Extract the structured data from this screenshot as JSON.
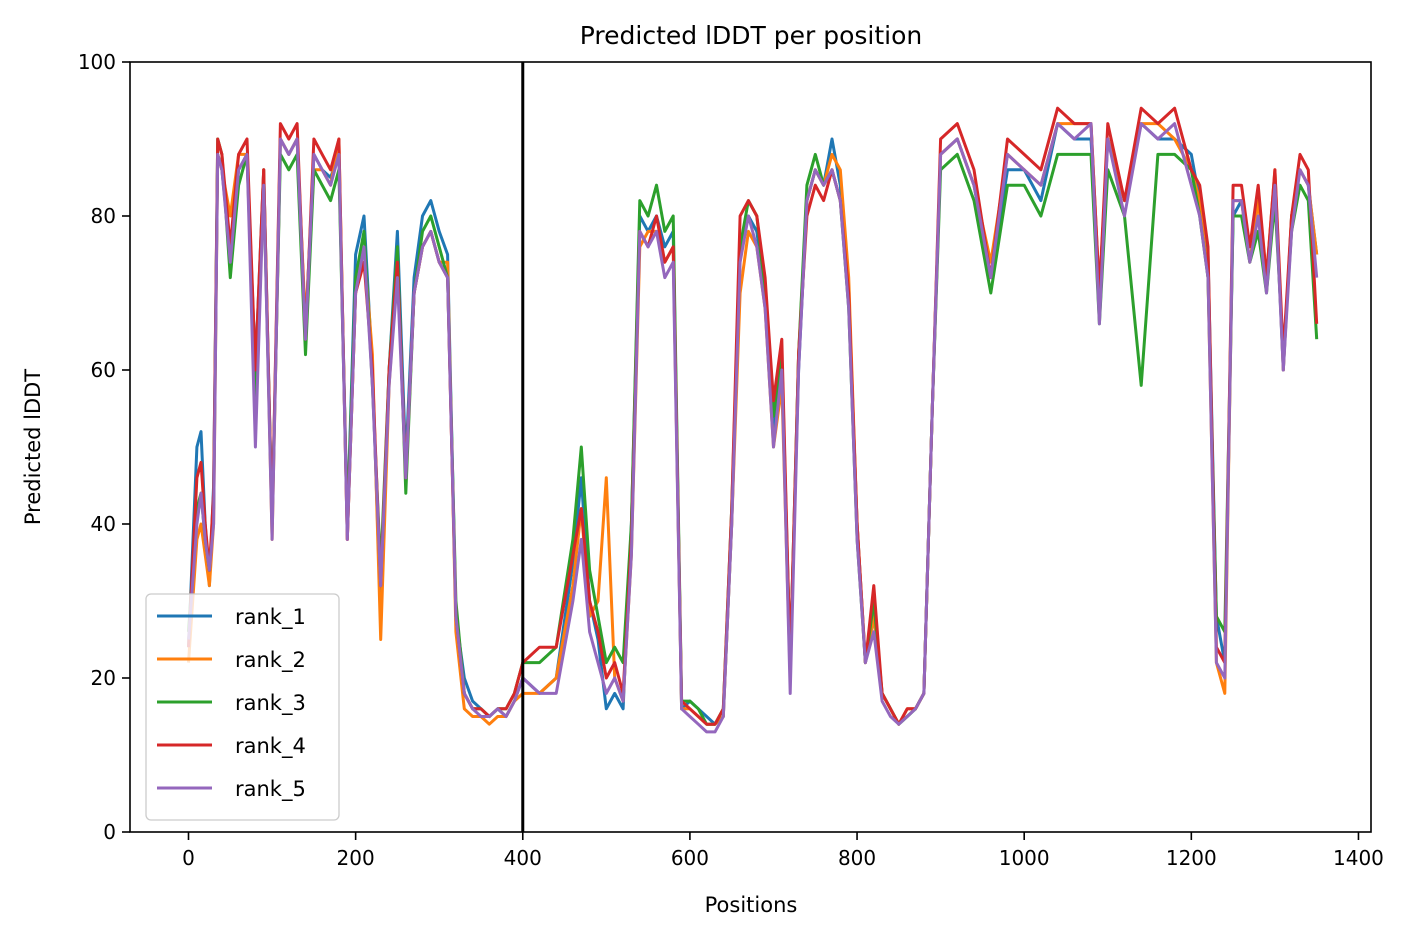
{
  "chart_data": {
    "type": "line",
    "title": "Predicted lDDT per position",
    "xlabel": "Positions",
    "ylabel": "Predicted lDDT",
    "xlim": [
      -70,
      1415
    ],
    "ylim": [
      0,
      100
    ],
    "xticks": [
      0,
      200,
      400,
      600,
      800,
      1000,
      1200,
      1400
    ],
    "yticks": [
      0,
      20,
      40,
      60,
      80,
      100
    ],
    "grid": false,
    "legend_position": "lower-left",
    "vline": {
      "x": 400,
      "color": "#000000"
    },
    "series": [
      {
        "name": "rank_1",
        "color": "#1f77b4",
        "x": [
          0,
          10,
          15,
          20,
          25,
          30,
          35,
          40,
          50,
          60,
          70,
          80,
          90,
          100,
          110,
          120,
          130,
          140,
          150,
          160,
          170,
          180,
          190,
          200,
          210,
          220,
          230,
          240,
          250,
          260,
          270,
          280,
          290,
          300,
          310,
          320,
          330,
          340,
          350,
          360,
          370,
          380,
          390,
          400,
          420,
          440,
          460,
          470,
          480,
          490,
          500,
          510,
          520,
          530,
          540,
          550,
          560,
          570,
          580,
          590,
          600,
          610,
          620,
          630,
          640,
          650,
          660,
          670,
          680,
          690,
          700,
          710,
          720,
          730,
          740,
          750,
          760,
          770,
          780,
          790,
          800,
          810,
          820,
          830,
          840,
          850,
          860,
          870,
          880,
          890,
          900,
          920,
          940,
          960,
          980,
          1000,
          1020,
          1040,
          1060,
          1080,
          1090,
          1100,
          1120,
          1140,
          1160,
          1180,
          1200,
          1210,
          1220,
          1230,
          1240,
          1250,
          1260,
          1270,
          1280,
          1290,
          1300,
          1310,
          1320,
          1330,
          1340,
          1350
        ],
        "values": [
          24,
          50,
          52,
          40,
          32,
          45,
          88,
          86,
          75,
          86,
          88,
          60,
          86,
          40,
          90,
          88,
          90,
          65,
          88,
          86,
          85,
          88,
          40,
          75,
          80,
          60,
          28,
          60,
          78,
          48,
          72,
          80,
          82,
          78,
          75,
          28,
          20,
          17,
          16,
          15,
          16,
          15,
          17,
          20,
          18,
          20,
          35,
          46,
          30,
          25,
          16,
          18,
          16,
          40,
          80,
          78,
          80,
          76,
          78,
          16,
          17,
          16,
          15,
          14,
          15,
          40,
          75,
          80,
          78,
          70,
          52,
          60,
          22,
          60,
          82,
          86,
          84,
          90,
          84,
          70,
          40,
          22,
          28,
          18,
          16,
          14,
          15,
          16,
          18,
          55,
          88,
          90,
          84,
          72,
          86,
          86,
          82,
          92,
          90,
          90,
          70,
          90,
          82,
          92,
          90,
          90,
          88,
          82,
          75,
          28,
          22,
          80,
          82,
          76,
          80,
          72,
          85,
          60,
          80,
          86,
          84,
          75
        ]
      },
      {
        "name": "rank_2",
        "color": "#ff7f0e",
        "x": [
          0,
          10,
          15,
          20,
          25,
          30,
          35,
          40,
          50,
          60,
          70,
          80,
          90,
          100,
          110,
          120,
          130,
          140,
          150,
          160,
          170,
          180,
          190,
          200,
          210,
          220,
          230,
          240,
          250,
          260,
          270,
          280,
          290,
          300,
          310,
          320,
          330,
          340,
          350,
          360,
          370,
          380,
          390,
          400,
          420,
          440,
          460,
          470,
          480,
          490,
          500,
          510,
          520,
          530,
          540,
          550,
          560,
          570,
          580,
          590,
          600,
          610,
          620,
          630,
          640,
          650,
          660,
          670,
          680,
          690,
          700,
          710,
          720,
          730,
          740,
          750,
          760,
          770,
          780,
          790,
          800,
          810,
          820,
          830,
          840,
          850,
          860,
          870,
          880,
          890,
          900,
          920,
          940,
          960,
          980,
          1000,
          1020,
          1040,
          1060,
          1080,
          1090,
          1100,
          1120,
          1140,
          1160,
          1180,
          1200,
          1210,
          1220,
          1230,
          1240,
          1250,
          1260,
          1270,
          1280,
          1290,
          1300,
          1310,
          1320,
          1330,
          1340,
          1350
        ],
        "values": [
          22,
          38,
          40,
          36,
          32,
          40,
          88,
          86,
          80,
          88,
          88,
          58,
          86,
          38,
          90,
          88,
          90,
          66,
          86,
          86,
          84,
          90,
          38,
          70,
          76,
          62,
          25,
          58,
          74,
          46,
          70,
          76,
          78,
          74,
          74,
          26,
          16,
          15,
          15,
          14,
          15,
          15,
          17,
          18,
          18,
          20,
          32,
          42,
          28,
          30,
          46,
          20,
          17,
          36,
          76,
          78,
          78,
          74,
          76,
          16,
          16,
          15,
          14,
          14,
          15,
          40,
          70,
          78,
          76,
          68,
          50,
          58,
          20,
          62,
          82,
          86,
          84,
          88,
          86,
          72,
          40,
          22,
          28,
          18,
          16,
          14,
          16,
          16,
          18,
          55,
          88,
          90,
          84,
          74,
          88,
          86,
          84,
          92,
          92,
          92,
          70,
          90,
          82,
          92,
          92,
          90,
          86,
          82,
          72,
          22,
          18,
          82,
          82,
          74,
          82,
          72,
          86,
          60,
          80,
          86,
          84,
          75
        ]
      },
      {
        "name": "rank_3",
        "color": "#2ca02c",
        "x": [
          0,
          10,
          15,
          20,
          25,
          30,
          35,
          40,
          50,
          60,
          70,
          80,
          90,
          100,
          110,
          120,
          130,
          140,
          150,
          160,
          170,
          180,
          190,
          200,
          210,
          220,
          230,
          240,
          250,
          260,
          270,
          280,
          290,
          300,
          310,
          320,
          330,
          340,
          350,
          360,
          370,
          380,
          390,
          400,
          420,
          440,
          460,
          470,
          480,
          490,
          500,
          510,
          520,
          530,
          540,
          550,
          560,
          570,
          580,
          590,
          600,
          610,
          620,
          630,
          640,
          650,
          660,
          670,
          680,
          690,
          700,
          710,
          720,
          730,
          740,
          750,
          760,
          770,
          780,
          790,
          800,
          810,
          820,
          830,
          840,
          850,
          860,
          870,
          880,
          890,
          900,
          920,
          940,
          960,
          980,
          1000,
          1020,
          1040,
          1060,
          1080,
          1090,
          1100,
          1120,
          1140,
          1160,
          1180,
          1200,
          1210,
          1220,
          1230,
          1240,
          1250,
          1260,
          1270,
          1280,
          1290,
          1300,
          1310,
          1320,
          1330,
          1340,
          1350
        ],
        "values": [
          26,
          42,
          44,
          38,
          34,
          42,
          90,
          88,
          72,
          84,
          88,
          56,
          84,
          40,
          88,
          86,
          88,
          62,
          86,
          84,
          82,
          86,
          40,
          72,
          78,
          58,
          34,
          60,
          76,
          44,
          70,
          78,
          80,
          76,
          72,
          30,
          18,
          16,
          16,
          15,
          16,
          16,
          18,
          22,
          22,
          24,
          38,
          50,
          34,
          28,
          22,
          24,
          22,
          40,
          82,
          80,
          84,
          78,
          80,
          17,
          17,
          16,
          14,
          14,
          16,
          42,
          76,
          82,
          80,
          70,
          54,
          62,
          22,
          62,
          84,
          88,
          84,
          86,
          82,
          68,
          38,
          22,
          30,
          18,
          16,
          14,
          15,
          16,
          18,
          55,
          86,
          88,
          82,
          70,
          84,
          84,
          80,
          88,
          88,
          88,
          66,
          86,
          80,
          58,
          88,
          88,
          86,
          80,
          72,
          28,
          26,
          80,
          80,
          74,
          78,
          70,
          82,
          62,
          78,
          84,
          82,
          64
        ]
      },
      {
        "name": "rank_4",
        "color": "#d62728",
        "x": [
          0,
          10,
          15,
          20,
          25,
          30,
          35,
          40,
          50,
          60,
          70,
          80,
          90,
          100,
          110,
          120,
          130,
          140,
          150,
          160,
          170,
          180,
          190,
          200,
          210,
          220,
          230,
          240,
          250,
          260,
          270,
          280,
          290,
          300,
          310,
          320,
          330,
          340,
          350,
          360,
          370,
          380,
          390,
          400,
          420,
          440,
          460,
          470,
          480,
          490,
          500,
          510,
          520,
          530,
          540,
          550,
          560,
          570,
          580,
          590,
          600,
          610,
          620,
          630,
          640,
          650,
          660,
          670,
          680,
          690,
          700,
          710,
          720,
          730,
          740,
          750,
          760,
          770,
          780,
          790,
          800,
          810,
          820,
          830,
          840,
          850,
          860,
          870,
          880,
          890,
          900,
          920,
          940,
          960,
          980,
          1000,
          1020,
          1040,
          1060,
          1080,
          1090,
          1100,
          1120,
          1140,
          1160,
          1180,
          1200,
          1210,
          1220,
          1230,
          1240,
          1250,
          1260,
          1270,
          1280,
          1290,
          1300,
          1310,
          1320,
          1330,
          1340,
          1350
        ],
        "values": [
          24,
          46,
          48,
          40,
          34,
          44,
          90,
          88,
          76,
          88,
          90,
          60,
          86,
          40,
          92,
          90,
          92,
          64,
          90,
          88,
          86,
          90,
          38,
          70,
          74,
          60,
          32,
          60,
          74,
          46,
          70,
          76,
          78,
          74,
          72,
          28,
          18,
          16,
          16,
          15,
          16,
          16,
          18,
          22,
          24,
          24,
          36,
          42,
          30,
          26,
          20,
          22,
          18,
          38,
          78,
          76,
          80,
          74,
          76,
          17,
          16,
          15,
          14,
          14,
          16,
          42,
          80,
          82,
          80,
          72,
          56,
          64,
          22,
          62,
          80,
          84,
          82,
          86,
          82,
          70,
          40,
          22,
          32,
          18,
          16,
          14,
          16,
          16,
          18,
          55,
          90,
          92,
          86,
          72,
          90,
          88,
          86,
          94,
          92,
          92,
          70,
          92,
          82,
          94,
          92,
          94,
          86,
          84,
          76,
          24,
          22,
          84,
          84,
          76,
          84,
          72,
          86,
          62,
          80,
          88,
          86,
          66
        ]
      },
      {
        "name": "rank_5",
        "color": "#9467bd",
        "x": [
          0,
          10,
          15,
          20,
          25,
          30,
          35,
          40,
          50,
          60,
          70,
          80,
          90,
          100,
          110,
          120,
          130,
          140,
          150,
          160,
          170,
          180,
          190,
          200,
          210,
          220,
          230,
          240,
          250,
          260,
          270,
          280,
          290,
          300,
          310,
          320,
          330,
          340,
          350,
          360,
          370,
          380,
          390,
          400,
          420,
          440,
          460,
          470,
          480,
          490,
          500,
          510,
          520,
          530,
          540,
          550,
          560,
          570,
          580,
          590,
          600,
          610,
          620,
          630,
          640,
          650,
          660,
          670,
          680,
          690,
          700,
          710,
          720,
          730,
          740,
          750,
          760,
          770,
          780,
          790,
          800,
          810,
          820,
          830,
          840,
          850,
          860,
          870,
          880,
          890,
          900,
          920,
          940,
          960,
          980,
          1000,
          1020,
          1040,
          1060,
          1080,
          1090,
          1100,
          1120,
          1140,
          1160,
          1180,
          1200,
          1210,
          1220,
          1230,
          1240,
          1250,
          1260,
          1270,
          1280,
          1290,
          1300,
          1310,
          1320,
          1330,
          1340,
          1350
        ],
        "values": [
          25,
          40,
          44,
          38,
          34,
          40,
          88,
          86,
          74,
          86,
          88,
          50,
          84,
          38,
          90,
          88,
          90,
          64,
          88,
          86,
          84,
          88,
          38,
          70,
          76,
          58,
          32,
          58,
          72,
          46,
          70,
          76,
          78,
          74,
          72,
          28,
          18,
          16,
          15,
          15,
          16,
          15,
          17,
          20,
          18,
          18,
          30,
          38,
          26,
          22,
          18,
          20,
          17,
          36,
          78,
          76,
          78,
          72,
          74,
          16,
          15,
          14,
          13,
          13,
          15,
          40,
          74,
          80,
          76,
          68,
          50,
          60,
          18,
          60,
          82,
          86,
          84,
          86,
          82,
          68,
          38,
          22,
          26,
          17,
          15,
          14,
          15,
          16,
          18,
          55,
          88,
          90,
          84,
          72,
          88,
          86,
          84,
          92,
          90,
          92,
          66,
          90,
          80,
          92,
          90,
          92,
          84,
          80,
          72,
          22,
          20,
          82,
          82,
          74,
          80,
          70,
          84,
          60,
          78,
          86,
          84,
          72
        ]
      }
    ]
  }
}
